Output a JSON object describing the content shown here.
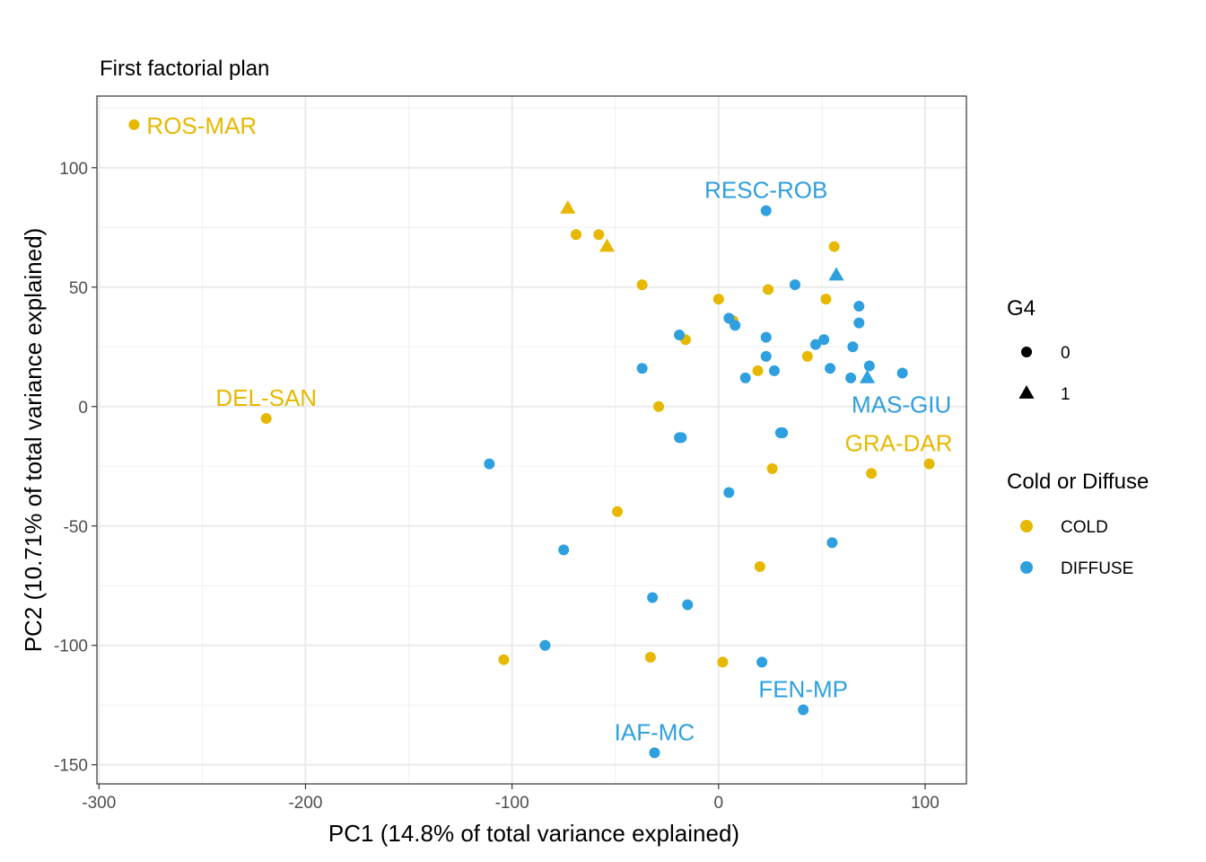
{
  "chart_data": {
    "type": "scatter",
    "title": "First factorial plan",
    "xlabel": "PC1 (14.8% of total variance explained)",
    "ylabel": "PC2 (10.71% of total variance explained)",
    "xlim": [
      -301,
      120
    ],
    "ylim": [
      -158,
      130
    ],
    "xticks": [
      -300,
      -200,
      -100,
      0,
      100
    ],
    "xtick_labels": [
      "-300",
      "-200",
      "-100",
      "0",
      "100"
    ],
    "yticks": [
      -150,
      -100,
      -50,
      0,
      50,
      100
    ],
    "ytick_labels": [
      "-150",
      "-100",
      "-50",
      "0",
      "50",
      "100"
    ],
    "grid": true,
    "legend_position": "right",
    "colors": {
      "COLD": "#E7B800",
      "DIFFUSE": "#2E9FDF"
    },
    "legends": [
      {
        "title": "G4",
        "entries": [
          {
            "label": "0",
            "shape": "circle"
          },
          {
            "label": "1",
            "shape": "triangle"
          }
        ]
      },
      {
        "title": "Cold or Diffuse",
        "entries": [
          {
            "label": "COLD",
            "group": "COLD"
          },
          {
            "label": "DIFFUSE",
            "group": "DIFFUSE"
          }
        ]
      }
    ],
    "points": [
      {
        "x": -283,
        "y": 118,
        "group": "COLD",
        "g4": "0"
      },
      {
        "x": -219,
        "y": -5,
        "group": "COLD",
        "g4": "0"
      },
      {
        "x": -73,
        "y": 83,
        "group": "COLD",
        "g4": "1"
      },
      {
        "x": -69,
        "y": 72,
        "group": "COLD",
        "g4": "0"
      },
      {
        "x": -58,
        "y": 72,
        "group": "COLD",
        "g4": "0"
      },
      {
        "x": -54,
        "y": 67,
        "group": "COLD",
        "g4": "1"
      },
      {
        "x": -37,
        "y": 51,
        "group": "COLD",
        "g4": "0"
      },
      {
        "x": -16,
        "y": 28,
        "group": "COLD",
        "g4": "0"
      },
      {
        "x": -29,
        "y": 0,
        "group": "COLD",
        "g4": "0"
      },
      {
        "x": -49,
        "y": -44,
        "group": "COLD",
        "g4": "0"
      },
      {
        "x": -104,
        "y": -106,
        "group": "COLD",
        "g4": "0"
      },
      {
        "x": -33,
        "y": -105,
        "group": "COLD",
        "g4": "0"
      },
      {
        "x": 2,
        "y": -107,
        "group": "COLD",
        "g4": "0"
      },
      {
        "x": 20,
        "y": -67,
        "group": "COLD",
        "g4": "0"
      },
      {
        "x": 26,
        "y": -26,
        "group": "COLD",
        "g4": "0"
      },
      {
        "x": 0,
        "y": 45,
        "group": "COLD",
        "g4": "0"
      },
      {
        "x": 7,
        "y": 36,
        "group": "COLD",
        "g4": "0"
      },
      {
        "x": 19,
        "y": 15,
        "group": "COLD",
        "g4": "0"
      },
      {
        "x": 24,
        "y": 49,
        "group": "COLD",
        "g4": "0"
      },
      {
        "x": 43,
        "y": 21,
        "group": "COLD",
        "g4": "0"
      },
      {
        "x": 52,
        "y": 45,
        "group": "COLD",
        "g4": "0"
      },
      {
        "x": 56,
        "y": 67,
        "group": "COLD",
        "g4": "0"
      },
      {
        "x": 74,
        "y": -28,
        "group": "COLD",
        "g4": "0"
      },
      {
        "x": 102,
        "y": -24,
        "group": "COLD",
        "g4": "0"
      },
      {
        "x": -111,
        "y": -24,
        "group": "DIFFUSE",
        "g4": "0"
      },
      {
        "x": -75,
        "y": -60,
        "group": "DIFFUSE",
        "g4": "0"
      },
      {
        "x": -84,
        "y": -100,
        "group": "DIFFUSE",
        "g4": "0"
      },
      {
        "x": -32,
        "y": -80,
        "group": "DIFFUSE",
        "g4": "0"
      },
      {
        "x": -15,
        "y": -83,
        "group": "DIFFUSE",
        "g4": "0"
      },
      {
        "x": -31,
        "y": -145,
        "group": "DIFFUSE",
        "g4": "0"
      },
      {
        "x": 21,
        "y": -107,
        "group": "DIFFUSE",
        "g4": "0"
      },
      {
        "x": 41,
        "y": -127,
        "group": "DIFFUSE",
        "g4": "0"
      },
      {
        "x": 55,
        "y": -57,
        "group": "DIFFUSE",
        "g4": "0"
      },
      {
        "x": 5,
        "y": -36,
        "group": "DIFFUSE",
        "g4": "0"
      },
      {
        "x": -37,
        "y": 16,
        "group": "DIFFUSE",
        "g4": "0"
      },
      {
        "x": -19,
        "y": -13,
        "group": "DIFFUSE",
        "g4": "0"
      },
      {
        "x": -18,
        "y": -13,
        "group": "DIFFUSE",
        "g4": "0"
      },
      {
        "x": -19,
        "y": 30,
        "group": "DIFFUSE",
        "g4": "0"
      },
      {
        "x": 5,
        "y": 37,
        "group": "DIFFUSE",
        "g4": "0"
      },
      {
        "x": 8,
        "y": 34,
        "group": "DIFFUSE",
        "g4": "0"
      },
      {
        "x": 13,
        "y": 12,
        "group": "DIFFUSE",
        "g4": "0"
      },
      {
        "x": 23,
        "y": 82,
        "group": "DIFFUSE",
        "g4": "0"
      },
      {
        "x": 23,
        "y": 29,
        "group": "DIFFUSE",
        "g4": "0"
      },
      {
        "x": 23,
        "y": 21,
        "group": "DIFFUSE",
        "g4": "0"
      },
      {
        "x": 27,
        "y": 15,
        "group": "DIFFUSE",
        "g4": "0"
      },
      {
        "x": 30,
        "y": -11,
        "group": "DIFFUSE",
        "g4": "0"
      },
      {
        "x": 31,
        "y": -11,
        "group": "DIFFUSE",
        "g4": "0"
      },
      {
        "x": 37,
        "y": 51,
        "group": "DIFFUSE",
        "g4": "0"
      },
      {
        "x": 47,
        "y": 26,
        "group": "DIFFUSE",
        "g4": "0"
      },
      {
        "x": 51,
        "y": 28,
        "group": "DIFFUSE",
        "g4": "0"
      },
      {
        "x": 54,
        "y": 16,
        "group": "DIFFUSE",
        "g4": "0"
      },
      {
        "x": 57,
        "y": 55,
        "group": "DIFFUSE",
        "g4": "1"
      },
      {
        "x": 64,
        "y": 12,
        "group": "DIFFUSE",
        "g4": "0"
      },
      {
        "x": 65,
        "y": 25,
        "group": "DIFFUSE",
        "g4": "0"
      },
      {
        "x": 68,
        "y": 42,
        "group": "DIFFUSE",
        "g4": "0"
      },
      {
        "x": 68,
        "y": 35,
        "group": "DIFFUSE",
        "g4": "0"
      },
      {
        "x": 72,
        "y": 12,
        "group": "DIFFUSE",
        "g4": "1"
      },
      {
        "x": 73,
        "y": 17,
        "group": "DIFFUSE",
        "g4": "0"
      },
      {
        "x": 89,
        "y": 14,
        "group": "DIFFUSE",
        "g4": "0"
      }
    ],
    "annotations": [
      {
        "text": "ROS-MAR",
        "x": -283,
        "y": 118,
        "group": "COLD",
        "anchor": "start"
      },
      {
        "text": "DEL-SAN",
        "x": -219,
        "y": -5,
        "group": "COLD",
        "anchor": "middle"
      },
      {
        "text": "RESC-ROB",
        "x": 23,
        "y": 82,
        "group": "DIFFUSE",
        "anchor": "middle"
      },
      {
        "text": "MAS-GIU",
        "x": 89,
        "y": 14,
        "group": "DIFFUSE",
        "anchor": "middle"
      },
      {
        "text": "GRA-DAR",
        "x": 102,
        "y": -24,
        "group": "COLD",
        "anchor": "middle"
      },
      {
        "text": "FEN-MP",
        "x": 41,
        "y": -127,
        "group": "DIFFUSE",
        "anchor": "middle"
      },
      {
        "text": "IAF-MC",
        "x": -31,
        "y": -145,
        "group": "DIFFUSE",
        "anchor": "middle"
      }
    ]
  }
}
